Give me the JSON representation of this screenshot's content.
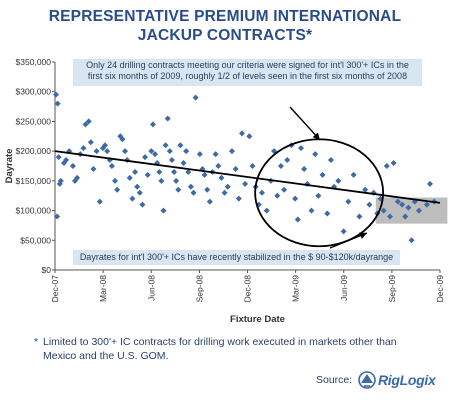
{
  "title_line1": "REPRESENTATIVE PREMIUM INTERNATIONAL",
  "title_line2": "JACKUP CONTRACTS*",
  "annotation_top_line1": "Only 24 drilling contracts meeting our criteria were signed for int'l 300'+ ICs in the",
  "annotation_top_line2": "first six months of 2009, roughly 1/2 of levels seen in the first six months of 2008",
  "annotation_bottom": "Dayrates for int'l 300'+ ICs have recently stabilized in the $  90-$120k/dayrange",
  "footnote_star": "*",
  "footnote_line1": "Limited to 300'+ IC contracts for drilling work executed in markets other than",
  "footnote_line2": "Mexico and the U.S. GOM.",
  "source_label": "Source:",
  "logo_text": "RigLogix",
  "colors": {
    "title": "#2b4c8a",
    "points": "#3e6aa6",
    "trend": "#000000",
    "annotation_box": "#d8e6f2",
    "shaded_region": "#bdbdbd"
  },
  "chart_data": {
    "type": "scatter",
    "xlabel": "Fixture Date",
    "ylabel": "Dayrate",
    "x_tick_labels": [
      "Dec-07",
      "Mar-08",
      "Jun-08",
      "Sep-08",
      "Dec-08",
      "Mar-09",
      "Jun-09",
      "Sep-09",
      "Dec-09"
    ],
    "y_tick_labels": [
      "$0",
      "$50,000",
      "$100,000",
      "$150,000",
      "$200,000",
      "$250,000",
      "$300,000",
      "$350,000"
    ],
    "xlim": [
      "2007-12-01",
      "2009-12-01"
    ],
    "ylim": [
      0,
      350000
    ],
    "grid": false,
    "trendline": {
      "start": [
        "2007-12-01",
        200000
      ],
      "end": [
        "2009-12-01",
        113000
      ]
    },
    "highlight_ellipse": {
      "x_range": [
        "2008-12-15",
        "2009-08-15"
      ],
      "y_range": [
        40000,
        220000
      ]
    },
    "shaded_region": {
      "x_range": [
        "2009-08-01",
        "2009-12-15"
      ],
      "y_range": [
        78000,
        122000
      ]
    },
    "points": [
      [
        "2007-12-03",
        295000
      ],
      [
        "2007-12-06",
        280000
      ],
      [
        "2007-12-08",
        190000
      ],
      [
        "2007-12-10",
        145000
      ],
      [
        "2007-12-05",
        90000
      ],
      [
        "2007-12-12",
        150000
      ],
      [
        "2007-12-18",
        180000
      ],
      [
        "2007-12-22",
        185000
      ],
      [
        "2007-12-28",
        200000
      ],
      [
        "2008-01-04",
        175000
      ],
      [
        "2008-01-08",
        150000
      ],
      [
        "2008-01-12",
        155000
      ],
      [
        "2008-01-18",
        195000
      ],
      [
        "2008-01-24",
        205000
      ],
      [
        "2008-01-28",
        245000
      ],
      [
        "2008-02-03",
        250000
      ],
      [
        "2008-02-07",
        215000
      ],
      [
        "2008-02-12",
        170000
      ],
      [
        "2008-02-18",
        200000
      ],
      [
        "2008-02-24",
        115000
      ],
      [
        "2008-03-01",
        205000
      ],
      [
        "2008-03-05",
        210000
      ],
      [
        "2008-03-09",
        200000
      ],
      [
        "2008-03-14",
        185000
      ],
      [
        "2008-03-18",
        175000
      ],
      [
        "2008-03-24",
        150000
      ],
      [
        "2008-03-28",
        135000
      ],
      [
        "2008-04-03",
        225000
      ],
      [
        "2008-04-07",
        220000
      ],
      [
        "2008-04-12",
        200000
      ],
      [
        "2008-04-16",
        185000
      ],
      [
        "2008-04-21",
        155000
      ],
      [
        "2008-04-26",
        120000
      ],
      [
        "2008-05-01",
        165000
      ],
      [
        "2008-05-05",
        140000
      ],
      [
        "2008-05-10",
        130000
      ],
      [
        "2008-05-15",
        110000
      ],
      [
        "2008-05-20",
        190000
      ],
      [
        "2008-05-25",
        160000
      ],
      [
        "2008-06-01",
        200000
      ],
      [
        "2008-06-04",
        245000
      ],
      [
        "2008-06-08",
        195000
      ],
      [
        "2008-06-12",
        180000
      ],
      [
        "2008-06-16",
        165000
      ],
      [
        "2008-06-20",
        150000
      ],
      [
        "2008-06-24",
        100000
      ],
      [
        "2008-06-28",
        210000
      ],
      [
        "2008-07-02",
        255000
      ],
      [
        "2008-07-06",
        200000
      ],
      [
        "2008-07-10",
        185000
      ],
      [
        "2008-07-14",
        165000
      ],
      [
        "2008-07-18",
        150000
      ],
      [
        "2008-07-22",
        135000
      ],
      [
        "2008-07-26",
        210000
      ],
      [
        "2008-08-01",
        180000
      ],
      [
        "2008-08-06",
        200000
      ],
      [
        "2008-08-10",
        165000
      ],
      [
        "2008-08-15",
        140000
      ],
      [
        "2008-08-20",
        130000
      ],
      [
        "2008-08-24",
        290000
      ],
      [
        "2008-09-01",
        195000
      ],
      [
        "2008-09-06",
        170000
      ],
      [
        "2008-09-10",
        160000
      ],
      [
        "2008-09-15",
        135000
      ],
      [
        "2008-09-20",
        115000
      ],
      [
        "2008-09-25",
        165000
      ],
      [
        "2008-10-01",
        195000
      ],
      [
        "2008-10-06",
        175000
      ],
      [
        "2008-10-12",
        155000
      ],
      [
        "2008-10-18",
        130000
      ],
      [
        "2008-10-24",
        140000
      ],
      [
        "2008-11-01",
        200000
      ],
      [
        "2008-11-08",
        170000
      ],
      [
        "2008-11-14",
        120000
      ],
      [
        "2008-11-20",
        230000
      ],
      [
        "2008-11-26",
        145000
      ],
      [
        "2008-12-04",
        225000
      ],
      [
        "2008-12-10",
        175000
      ],
      [
        "2008-12-16",
        140000
      ],
      [
        "2008-12-22",
        110000
      ],
      [
        "2008-12-28",
        130000
      ],
      [
        "2009-01-06",
        100000
      ],
      [
        "2009-01-14",
        150000
      ],
      [
        "2009-01-20",
        200000
      ],
      [
        "2009-01-26",
        125000
      ],
      [
        "2009-02-02",
        175000
      ],
      [
        "2009-02-08",
        135000
      ],
      [
        "2009-02-14",
        185000
      ],
      [
        "2009-02-22",
        210000
      ],
      [
        "2009-03-01",
        120000
      ],
      [
        "2009-03-06",
        85000
      ],
      [
        "2009-03-12",
        205000
      ],
      [
        "2009-03-18",
        170000
      ],
      [
        "2009-03-24",
        145000
      ],
      [
        "2009-04-01",
        100000
      ],
      [
        "2009-04-08",
        195000
      ],
      [
        "2009-04-14",
        125000
      ],
      [
        "2009-04-22",
        160000
      ],
      [
        "2009-05-01",
        95000
      ],
      [
        "2009-05-08",
        185000
      ],
      [
        "2009-05-14",
        140000
      ],
      [
        "2009-05-22",
        150000
      ],
      [
        "2009-06-01",
        65000
      ],
      [
        "2009-06-10",
        115000
      ],
      [
        "2009-06-20",
        160000
      ],
      [
        "2009-07-01",
        90000
      ],
      [
        "2009-07-12",
        135000
      ],
      [
        "2009-07-20",
        110000
      ],
      [
        "2009-07-28",
        130000
      ],
      [
        "2009-08-04",
        95000
      ],
      [
        "2009-08-10",
        120000
      ],
      [
        "2009-08-16",
        100000
      ],
      [
        "2009-08-22",
        175000
      ],
      [
        "2009-08-28",
        90000
      ],
      [
        "2009-09-04",
        180000
      ],
      [
        "2009-09-12",
        115000
      ],
      [
        "2009-09-20",
        110000
      ],
      [
        "2009-09-26",
        90000
      ],
      [
        "2009-10-02",
        105000
      ],
      [
        "2009-10-08",
        50000
      ],
      [
        "2009-10-14",
        115000
      ],
      [
        "2009-10-22",
        100000
      ],
      [
        "2009-11-06",
        110000
      ],
      [
        "2009-11-12",
        145000
      ],
      [
        "2009-11-20",
        115000
      ]
    ]
  }
}
